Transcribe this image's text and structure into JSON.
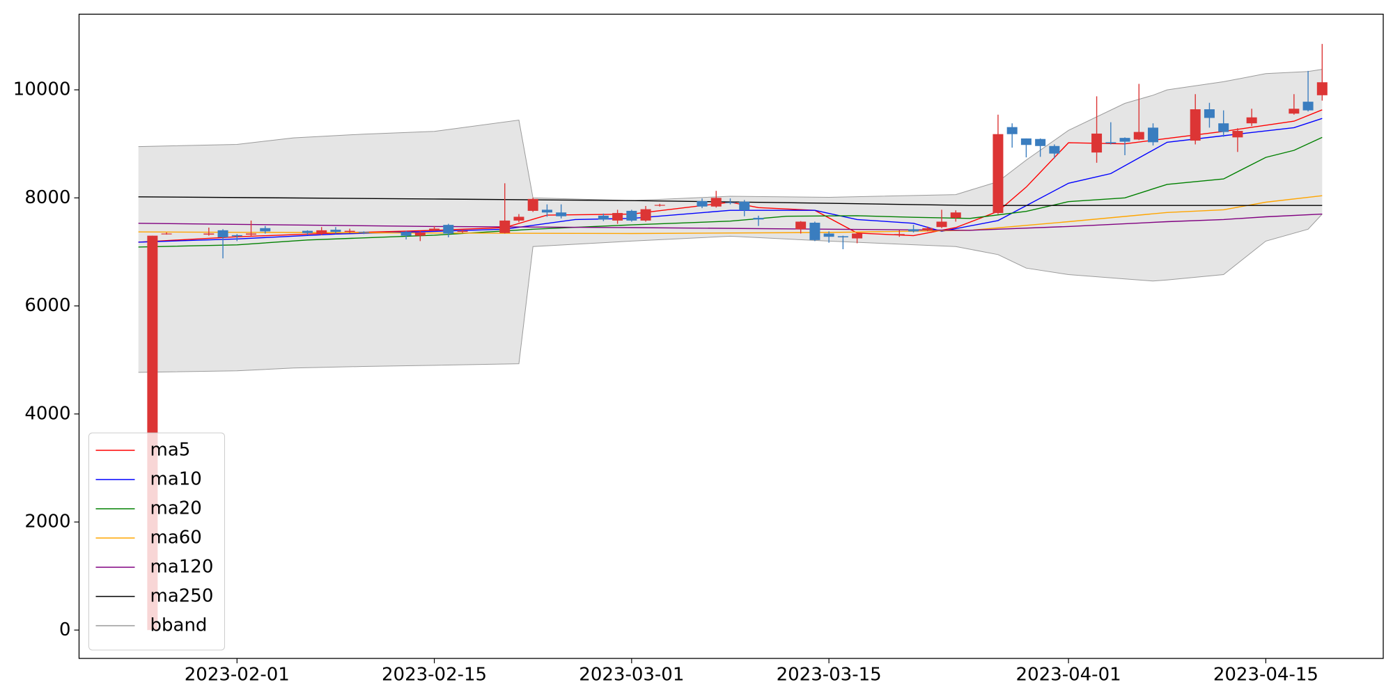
{
  "chart_data": {
    "type": "candlestick",
    "xlim": [
      "2023-01-20T19:00:00Z",
      "2023-04-23T08:00:00Z"
    ],
    "xticks": [
      "2023-02-01",
      "2023-02-15",
      "2023-03-01",
      "2023-03-15",
      "2023-04-01",
      "2023-04-15"
    ],
    "ylim": [
      -525,
      11400
    ],
    "yticks": [
      0,
      2000,
      4000,
      6000,
      8000,
      10000
    ],
    "grid": false,
    "legend": "lower left",
    "up_color": "#dc3535",
    "down_color": "#3a7dbf",
    "candles": {
      "x": [
        "2023-01-26",
        "2023-01-27",
        "2023-01-30",
        "2023-01-31",
        "2023-02-01",
        "2023-02-02",
        "2023-02-03",
        "2023-02-06",
        "2023-02-07",
        "2023-02-08",
        "2023-02-09",
        "2023-02-10",
        "2023-02-13",
        "2023-02-14",
        "2023-02-15",
        "2023-02-16",
        "2023-02-17",
        "2023-02-20",
        "2023-02-21",
        "2023-02-22",
        "2023-02-23",
        "2023-02-24",
        "2023-02-27",
        "2023-02-28",
        "2023-03-01",
        "2023-03-02",
        "2023-03-03",
        "2023-03-06",
        "2023-03-07",
        "2023-03-08",
        "2023-03-09",
        "2023-03-10",
        "2023-03-13",
        "2023-03-14",
        "2023-03-15",
        "2023-03-16",
        "2023-03-17",
        "2023-03-20",
        "2023-03-21",
        "2023-03-22",
        "2023-03-23",
        "2023-03-24",
        "2023-03-27",
        "2023-03-28",
        "2023-03-29",
        "2023-03-30",
        "2023-03-31",
        "2023-04-03",
        "2023-04-04",
        "2023-04-05",
        "2023-04-06",
        "2023-04-07",
        "2023-04-10",
        "2023-04-11",
        "2023-04-12",
        "2023-04-13",
        "2023-04-14",
        "2023-04-17",
        "2023-04-18",
        "2023-04-19"
      ],
      "open": [
        0,
        7330,
        7320,
        7400,
        7310,
        7320,
        7440,
        7390,
        7340,
        7410,
        7370,
        7370,
        7370,
        7300,
        7400,
        7500,
        7370,
        7350,
        7580,
        7760,
        7780,
        7730,
        7670,
        7580,
        7760,
        7580,
        7860,
        7940,
        7840,
        7920,
        7930,
        7630,
        7420,
        7540,
        7340,
        7290,
        7250,
        7320,
        7420,
        7400,
        7460,
        7630,
        7720,
        9310,
        9100,
        9090,
        8960,
        8840,
        9030,
        9110,
        9080,
        9300,
        9060,
        9640,
        9380,
        9120,
        9380,
        9560,
        9780,
        9900
      ],
      "high": [
        7300,
        7360,
        7450,
        7420,
        7330,
        7580,
        7480,
        7400,
        7460,
        7460,
        7430,
        7380,
        7390,
        7380,
        7480,
        7520,
        7420,
        8270,
        7700,
        8000,
        7880,
        7880,
        7710,
        7780,
        7780,
        7850,
        7890,
        7990,
        8130,
        7990,
        7960,
        7670,
        7570,
        7560,
        7380,
        7300,
        7360,
        7400,
        7500,
        7470,
        7780,
        7770,
        9540,
        9380,
        9100,
        9100,
        8990,
        9880,
        9400,
        9120,
        10110,
        9380,
        9920,
        9760,
        9620,
        9290,
        9650,
        9920,
        10350,
        10850
      ],
      "low": [
        0,
        7320,
        7300,
        6880,
        7200,
        7300,
        7340,
        7310,
        7310,
        7330,
        7350,
        7330,
        7230,
        7200,
        7390,
        7270,
        7350,
        7340,
        7550,
        7740,
        7650,
        7620,
        7570,
        7520,
        7560,
        7560,
        7840,
        7810,
        7820,
        7880,
        7660,
        7480,
        7340,
        7200,
        7170,
        7050,
        7160,
        7280,
        7360,
        7380,
        7440,
        7560,
        7700,
        8930,
        8750,
        8760,
        8730,
        8650,
        8990,
        8790,
        9070,
        8970,
        8990,
        9300,
        9130,
        8850,
        9330,
        9540,
        9600,
        9800
      ],
      "close": [
        7300,
        7340,
        7340,
        7270,
        7290,
        7340,
        7380,
        7350,
        7400,
        7370,
        7390,
        7360,
        7300,
        7360,
        7430,
        7340,
        7390,
        7580,
        7650,
        7980,
        7730,
        7660,
        7600,
        7720,
        7580,
        7790,
        7870,
        7840,
        8000,
        7910,
        7770,
        7600,
        7560,
        7220,
        7280,
        7270,
        7340,
        7330,
        7380,
        7440,
        7560,
        7730,
        9180,
        9180,
        8980,
        8960,
        8820,
        9190,
        9010,
        9040,
        9220,
        9030,
        9640,
        9480,
        9220,
        9240,
        9490,
        9650,
        9620,
        10140
      ]
    },
    "series": [
      {
        "name": "ma5",
        "color": "#ff0000",
        "x": [
          "2023-01-25",
          "2023-02-01",
          "2023-02-08",
          "2023-02-15",
          "2023-02-20",
          "2023-02-23",
          "2023-03-01",
          "2023-03-08",
          "2023-03-10",
          "2023-03-14",
          "2023-03-17",
          "2023-03-21",
          "2023-03-24",
          "2023-03-27",
          "2023-03-29",
          "2023-04-01",
          "2023-04-05",
          "2023-04-08",
          "2023-04-12",
          "2023-04-17",
          "2023-04-19"
        ],
        "values": [
          7180,
          7280,
          7350,
          7400,
          7450,
          7680,
          7700,
          7920,
          7820,
          7770,
          7350,
          7300,
          7450,
          7750,
          8200,
          9020,
          9000,
          9100,
          9230,
          9420,
          9630
        ]
      },
      {
        "name": "ma10",
        "color": "#0000ff",
        "x": [
          "2023-01-25",
          "2023-02-01",
          "2023-02-08",
          "2023-02-15",
          "2023-02-20",
          "2023-02-25",
          "2023-03-01",
          "2023-03-08",
          "2023-03-14",
          "2023-03-17",
          "2023-03-21",
          "2023-03-23",
          "2023-03-27",
          "2023-04-01",
          "2023-04-04",
          "2023-04-08",
          "2023-04-12",
          "2023-04-17",
          "2023-04-19"
        ],
        "values": [
          7180,
          7240,
          7330,
          7380,
          7420,
          7600,
          7620,
          7770,
          7770,
          7600,
          7530,
          7380,
          7580,
          8270,
          8450,
          9030,
          9150,
          9300,
          9470
        ]
      },
      {
        "name": "ma20",
        "color": "#008000",
        "x": [
          "2023-01-25",
          "2023-02-01",
          "2023-02-06",
          "2023-02-15",
          "2023-02-22",
          "2023-03-01",
          "2023-03-08",
          "2023-03-12",
          "2023-03-17",
          "2023-03-21",
          "2023-03-25",
          "2023-03-29",
          "2023-04-01",
          "2023-04-05",
          "2023-04-08",
          "2023-04-12",
          "2023-04-15",
          "2023-04-17",
          "2023-04-19"
        ],
        "values": [
          7090,
          7130,
          7220,
          7310,
          7420,
          7500,
          7570,
          7660,
          7670,
          7640,
          7620,
          7750,
          7930,
          8000,
          8250,
          8350,
          8750,
          8880,
          9120
        ]
      },
      {
        "name": "ma60",
        "color": "#ffa500",
        "x": [
          "2023-01-25",
          "2023-02-15",
          "2023-03-01",
          "2023-03-15",
          "2023-03-25",
          "2023-04-01",
          "2023-04-08",
          "2023-04-12",
          "2023-04-15",
          "2023-04-19"
        ],
        "values": [
          7370,
          7350,
          7340,
          7360,
          7400,
          7560,
          7730,
          7780,
          7920,
          8040
        ]
      },
      {
        "name": "ma120",
        "color": "#800080",
        "x": [
          "2023-01-25",
          "2023-02-15",
          "2023-03-01",
          "2023-03-15",
          "2023-03-25",
          "2023-04-01",
          "2023-04-08",
          "2023-04-12",
          "2023-04-15",
          "2023-04-19"
        ],
        "values": [
          7530,
          7470,
          7450,
          7420,
          7400,
          7470,
          7560,
          7600,
          7650,
          7700
        ]
      },
      {
        "name": "ma250",
        "color": "#000000",
        "x": [
          "2023-01-25",
          "2023-02-15",
          "2023-03-01",
          "2023-03-15",
          "2023-03-25",
          "2023-04-01",
          "2023-04-19"
        ],
        "values": [
          8020,
          7980,
          7950,
          7900,
          7860,
          7860,
          7860
        ]
      }
    ],
    "band": {
      "name": "bband",
      "color": "#9a9a9a",
      "fill": "#e5e5e5",
      "x": [
        "2023-01-25",
        "2023-02-01",
        "2023-02-05",
        "2023-02-10",
        "2023-02-15",
        "2023-02-21",
        "2023-02-22",
        "2023-03-01",
        "2023-03-08",
        "2023-03-15",
        "2023-03-24",
        "2023-03-27",
        "2023-03-29",
        "2023-04-01",
        "2023-04-05",
        "2023-04-07",
        "2023-04-08",
        "2023-04-12",
        "2023-04-15",
        "2023-04-18",
        "2023-04-19"
      ],
      "upper": [
        8950,
        8990,
        9110,
        9180,
        9230,
        9440,
        8000,
        7950,
        8030,
        8010,
        8060,
        8300,
        8700,
        9250,
        9750,
        9900,
        10000,
        10150,
        10300,
        10340,
        10380
      ],
      "lower": [
        4770,
        4800,
        4850,
        4880,
        4900,
        4930,
        7100,
        7200,
        7290,
        7200,
        7100,
        6950,
        6700,
        6580,
        6500,
        6460,
        6480,
        6580,
        7200,
        7420,
        7700
      ]
    }
  }
}
